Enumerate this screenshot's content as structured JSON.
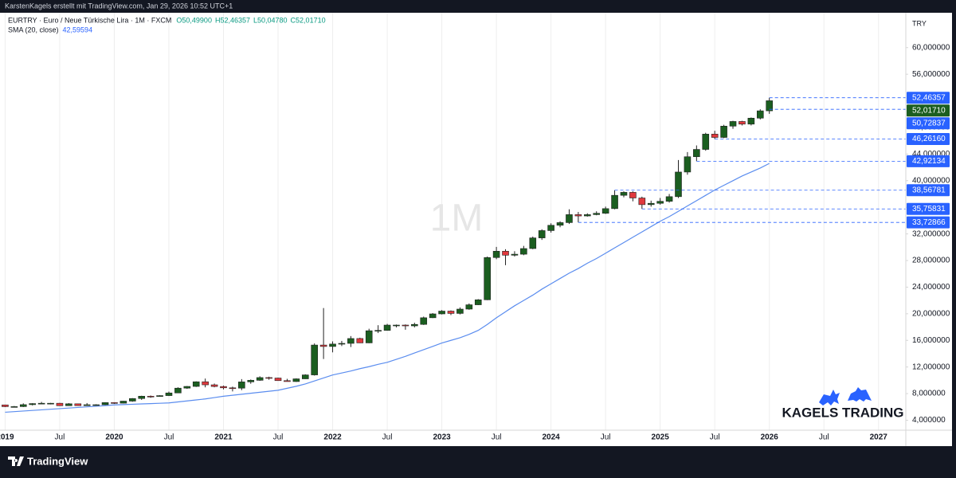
{
  "header": {
    "credit": "KarstenKagels erstellt mit TradingView.com, Jan 29, 2026 10:52 UTC+1"
  },
  "footer": {
    "brand": "TradingView"
  },
  "chart_data": {
    "type": "candlestick",
    "symbol": "EURTRY · Euro / Neue Türkische Lira · 1M · FXCM",
    "ohlc_labels": [
      "O50,49900",
      "H52,46357",
      "L50,04780",
      "C52,01710"
    ],
    "interval": "1M",
    "currency": "TRY",
    "brand": "KAGELS TRADING",
    "up_color": "#1b5e20",
    "down_color": "#e0393e",
    "x": [
      "2019-01",
      "2019-02",
      "2019-03",
      "2019-04",
      "2019-05",
      "2019-06",
      "2019-07",
      "2019-08",
      "2019-09",
      "2019-10",
      "2019-11",
      "2019-12",
      "2020-01",
      "2020-02",
      "2020-03",
      "2020-04",
      "2020-05",
      "2020-06",
      "2020-07",
      "2020-08",
      "2020-09",
      "2020-10",
      "2020-11",
      "2020-12",
      "2021-01",
      "2021-02",
      "2021-03",
      "2021-04",
      "2021-05",
      "2021-06",
      "2021-07",
      "2021-08",
      "2021-09",
      "2021-10",
      "2021-11",
      "2021-12",
      "2022-01",
      "2022-02",
      "2022-03",
      "2022-04",
      "2022-05",
      "2022-06",
      "2022-07",
      "2022-08",
      "2022-09",
      "2022-10",
      "2022-11",
      "2022-12",
      "2023-01",
      "2023-02",
      "2023-03",
      "2023-04",
      "2023-05",
      "2023-06",
      "2023-07",
      "2023-08",
      "2023-09",
      "2023-10",
      "2023-11",
      "2023-12",
      "2024-01",
      "2024-02",
      "2024-03",
      "2024-04",
      "2024-05",
      "2024-06",
      "2024-07",
      "2024-08",
      "2024-09",
      "2024-10",
      "2024-11",
      "2024-12",
      "2025-01",
      "2025-02",
      "2025-03",
      "2025-04",
      "2025-05",
      "2025-06",
      "2025-07",
      "2025-08",
      "2025-09",
      "2025-10",
      "2025-11",
      "2025-12",
      "2026-01"
    ],
    "open": [
      6.3,
      6.04,
      6.05,
      6.34,
      6.5,
      6.55,
      6.55,
      6.18,
      6.47,
      6.19,
      6.33,
      6.33,
      6.65,
      6.56,
      6.87,
      7.26,
      7.61,
      7.57,
      7.7,
      8.1,
      8.82,
      9.08,
      9.78,
      9.32,
      9.07,
      8.87,
      8.82,
      9.76,
      10.0,
      10.41,
      10.34,
      9.95,
      9.81,
      10.22,
      10.81,
      15.3,
      15.08,
      15.45,
      15.55,
      16.28,
      15.62,
      17.45,
      17.5,
      18.3,
      18.3,
      18.18,
      18.4,
      19.4,
      19.98,
      20.4,
      20.05,
      20.7,
      21.35,
      22.1,
      28.45,
      29.4,
      28.8,
      28.95,
      29.8,
      31.4,
      32.5,
      33.3,
      33.7,
      34.9,
      34.7,
      34.9,
      35.1,
      35.8,
      37.8,
      38.25,
      37.4,
      36.4,
      36.6,
      36.9,
      37.6,
      41.3,
      43.6,
      44.7,
      47.0,
      46.5,
      48.2,
      48.9,
      48.5,
      49.4,
      50.499
    ],
    "high": [
      6.34,
      6.14,
      6.53,
      6.56,
      6.75,
      6.6,
      6.6,
      6.57,
      6.48,
      6.58,
      6.4,
      6.7,
      6.7,
      6.9,
      7.32,
      7.68,
      7.72,
      7.75,
      8.3,
      8.95,
      9.14,
      9.84,
      10.26,
      9.51,
      9.2,
      9.05,
      10.18,
      10.12,
      10.6,
      10.54,
      10.4,
      10.22,
      10.29,
      10.9,
      15.54,
      20.86,
      15.85,
      15.92,
      16.65,
      16.4,
      17.75,
      18.28,
      18.48,
      18.38,
      18.4,
      18.65,
      19.57,
      20.1,
      20.55,
      20.5,
      20.95,
      21.55,
      22.2,
      28.6,
      30.05,
      29.7,
      29.4,
      30.2,
      31.6,
      32.7,
      33.6,
      33.9,
      35.7,
      35.3,
      35.1,
      35.4,
      36.1,
      38.57,
      38.4,
      38.4,
      37.6,
      37.0,
      37.4,
      38.0,
      43.1,
      44.3,
      45.3,
      47.2,
      47.5,
      48.4,
      49.0,
      49.0,
      49.5,
      50.73,
      52.46357
    ],
    "low": [
      5.98,
      5.94,
      5.98,
      6.22,
      6.48,
      6.38,
      6.14,
      6.17,
      6.17,
      6.15,
      6.19,
      6.3,
      6.46,
      6.51,
      6.78,
      7.06,
      7.37,
      7.55,
      7.64,
      8.08,
      8.71,
      9.0,
      8.94,
      8.95,
      8.64,
      8.33,
      8.52,
      9.48,
      9.92,
      10.09,
      9.94,
      9.8,
      9.76,
      10.21,
      10.71,
      13.2,
      14.2,
      15.15,
      15.0,
      15.6,
      15.58,
      17.1,
      17.45,
      17.95,
      17.6,
      17.95,
      18.32,
      19.35,
      19.9,
      19.8,
      19.9,
      20.6,
      21.3,
      22.05,
      28.2,
      27.3,
      28.6,
      28.8,
      29.7,
      31.1,
      32.2,
      33.0,
      33.5,
      33.73,
      34.6,
      34.8,
      35.0,
      35.7,
      37.5,
      36.9,
      35.76,
      36.1,
      36.4,
      36.7,
      37.4,
      40.9,
      42.92,
      44.5,
      46.26,
      46.4,
      47.8,
      48.3,
      48.3,
      49.2,
      50.0478
    ],
    "close": [
      6.04,
      6.05,
      6.34,
      6.5,
      6.55,
      6.55,
      6.18,
      6.47,
      6.19,
      6.33,
      6.33,
      6.65,
      6.56,
      6.87,
      7.26,
      7.61,
      7.57,
      7.7,
      8.1,
      8.82,
      9.08,
      9.78,
      9.32,
      9.07,
      8.87,
      8.82,
      9.76,
      10.0,
      10.41,
      10.34,
      9.95,
      9.81,
      10.22,
      10.81,
      15.3,
      15.08,
      15.45,
      15.55,
      16.28,
      15.62,
      17.45,
      17.5,
      18.3,
      18.3,
      18.18,
      18.4,
      19.4,
      19.98,
      20.4,
      20.05,
      20.7,
      21.35,
      22.1,
      28.45,
      29.4,
      28.8,
      28.95,
      29.8,
      31.4,
      32.5,
      33.3,
      33.7,
      34.9,
      34.7,
      34.9,
      35.1,
      35.8,
      37.8,
      38.25,
      37.4,
      36.4,
      36.6,
      36.9,
      37.6,
      41.3,
      43.6,
      44.7,
      47.0,
      46.5,
      48.2,
      48.9,
      48.5,
      49.4,
      50.5,
      52.0171
    ],
    "sma": {
      "name": "SMA (20, close)",
      "value_label": "42,59594",
      "color": "#5b8def",
      "values": [
        5.2,
        5.29,
        5.38,
        5.47,
        5.56,
        5.65,
        5.74,
        5.83,
        5.92,
        6.01,
        6.1,
        6.2,
        6.3,
        6.35,
        6.4,
        6.45,
        6.5,
        6.55,
        6.6,
        6.75,
        6.9,
        7.05,
        7.2,
        7.4,
        7.6,
        7.75,
        7.9,
        8.05,
        8.2,
        8.35,
        8.5,
        8.8,
        9.1,
        9.45,
        9.9,
        10.35,
        10.8,
        11.1,
        11.4,
        11.75,
        12.05,
        12.4,
        12.7,
        13.15,
        13.6,
        14.1,
        14.6,
        15.1,
        15.6,
        16.0,
        16.4,
        16.9,
        17.5,
        18.4,
        19.4,
        20.3,
        21.2,
        22.0,
        22.8,
        23.7,
        24.5,
        25.3,
        26.1,
        26.8,
        27.6,
        28.3,
        29.1,
        29.9,
        30.7,
        31.5,
        32.3,
        33.1,
        33.9,
        34.6,
        35.4,
        36.2,
        37.0,
        37.8,
        38.6,
        39.3,
        40.0,
        40.7,
        41.3,
        41.9,
        42.59594
      ]
    },
    "price_lines": [
      {
        "value": 52.46357,
        "label": "52,46357",
        "start": "2026-01",
        "color": "#2962ff"
      },
      {
        "value": 52.0171,
        "label": "52,01710",
        "color": "#1b5e20"
      },
      {
        "value": 50.72837,
        "label": "50,72837",
        "start": "2026-01",
        "color": "#2962ff"
      },
      {
        "value": 46.2616,
        "label": "46,26160",
        "start": "2025-07",
        "color": "#2962ff"
      },
      {
        "value": 42.92134,
        "label": "42,92134",
        "start": "2025-05",
        "color": "#2962ff"
      },
      {
        "value": 38.56781,
        "label": "38,56781",
        "start": "2024-08",
        "color": "#2962ff"
      },
      {
        "value": 35.75831,
        "label": "35,75831",
        "start": "2024-11",
        "color": "#2962ff"
      },
      {
        "value": 33.72866,
        "label": "33,72866",
        "start": "2024-04",
        "color": "#2962ff"
      }
    ],
    "xlim": [
      "2018-12",
      "2027-04"
    ],
    "ylim": [
      2.5,
      65
    ],
    "yticks": [
      {
        "value": 4,
        "label": "4,000000"
      },
      {
        "value": 8,
        "label": "8,000000"
      },
      {
        "value": 12,
        "label": "12,000000"
      },
      {
        "value": 16,
        "label": "16,000000"
      },
      {
        "value": 20,
        "label": "20,000000"
      },
      {
        "value": 24,
        "label": "24,000000"
      },
      {
        "value": 28,
        "label": "28,000000"
      },
      {
        "value": 32,
        "label": "32,000000"
      },
      {
        "value": 36,
        "label": "36,000000"
      },
      {
        "value": 40,
        "label": "40,000000"
      },
      {
        "value": 44,
        "label": "44,000000"
      },
      {
        "value": 48,
        "label": "48,000000"
      },
      {
        "value": 52,
        "label": "52,000000"
      },
      {
        "value": 56,
        "label": "56,000000"
      },
      {
        "value": 60,
        "label": "60,000000"
      }
    ],
    "xticks": [
      {
        "value": "2019-01",
        "label": "2019"
      },
      {
        "value": "2019-07",
        "label": "Jul"
      },
      {
        "value": "2020-01",
        "label": "2020"
      },
      {
        "value": "2020-07",
        "label": "Jul"
      },
      {
        "value": "2021-01",
        "label": "2021"
      },
      {
        "value": "2021-07",
        "label": "Jul"
      },
      {
        "value": "2022-01",
        "label": "2022"
      },
      {
        "value": "2022-07",
        "label": "Jul"
      },
      {
        "value": "2023-01",
        "label": "2023"
      },
      {
        "value": "2023-07",
        "label": "Jul"
      },
      {
        "value": "2024-01",
        "label": "2024"
      },
      {
        "value": "2024-07",
        "label": "Jul"
      },
      {
        "value": "2025-01",
        "label": "2025"
      },
      {
        "value": "2025-07",
        "label": "Jul"
      },
      {
        "value": "2026-01",
        "label": "2026"
      },
      {
        "value": "2026-07",
        "label": "Jul"
      },
      {
        "value": "2027-01",
        "label": "2027"
      }
    ],
    "grid": true
  }
}
